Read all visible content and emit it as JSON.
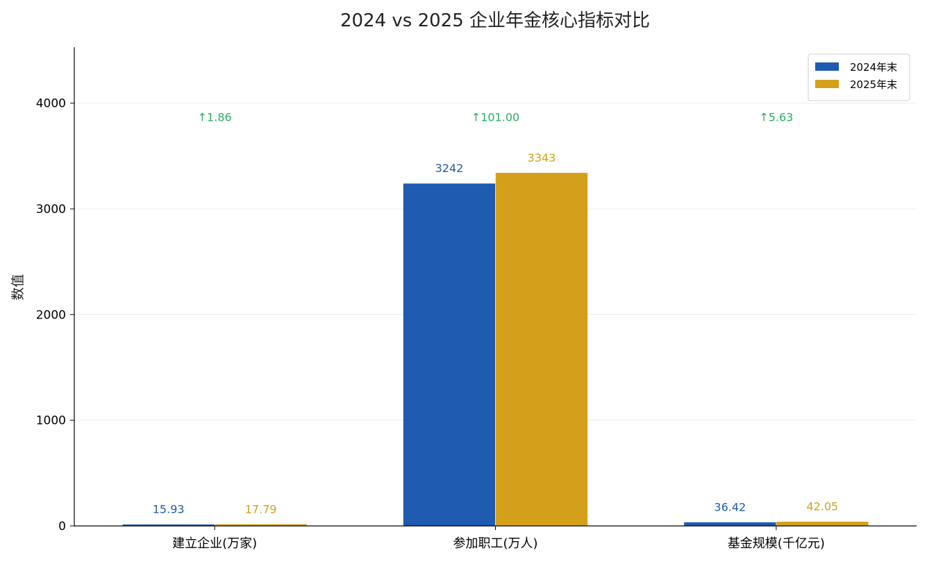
{
  "chart_data": {
    "type": "bar",
    "title": "2024 vs 2025 企业年金核心指标对比",
    "xlabel": "",
    "ylabel": "数值",
    "categories": [
      "建立企业(万家)",
      "参加职工(万人)",
      "基金规模(千亿元)"
    ],
    "series": [
      {
        "name": "2024年末",
        "color": "#1f5bb0",
        "values": [
          15.93,
          3242,
          36.42
        ],
        "labels": [
          "15.93",
          "3242",
          "36.42"
        ]
      },
      {
        "name": "2025年末",
        "color": "#d4a01b",
        "values": [
          17.79,
          3343,
          42.05
        ],
        "labels": [
          "17.79",
          "3343",
          "42.05"
        ]
      }
    ],
    "differences": [
      "↑1.86",
      "↑101.00",
      "↑5.63"
    ],
    "difference_color": "#27ae60",
    "ylim": [
      0,
      4530
    ],
    "yticks": [
      0,
      1000,
      2000,
      3000,
      4000
    ],
    "grid": true,
    "legend_position": "top-right"
  }
}
